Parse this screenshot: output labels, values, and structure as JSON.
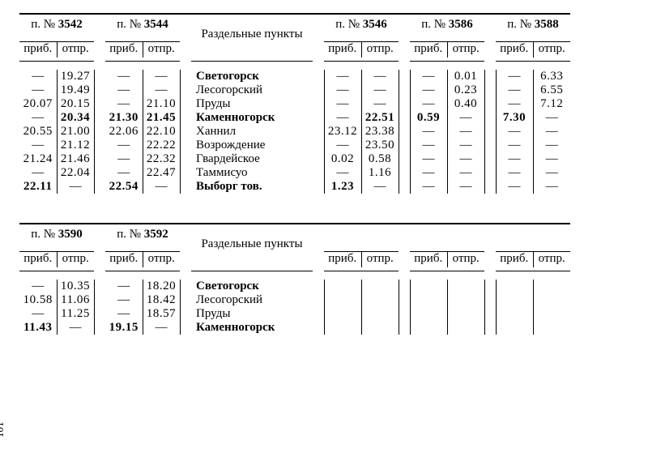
{
  "common": {
    "train_prefix": "п. №",
    "arr_label": "приб.",
    "dep_label": "отпр.",
    "stations_header": "Раздельные пункты",
    "page_number": "101",
    "em_dash": "—"
  },
  "table1": {
    "trains": [
      "3542",
      "3544",
      "3546",
      "3586",
      "3588"
    ],
    "stations": [
      {
        "name": "Светогорск",
        "bold": true
      },
      {
        "name": "Лесогорский",
        "bold": false
      },
      {
        "name": "Пруды",
        "bold": false
      },
      {
        "name": "Каменногорск",
        "bold": true
      },
      {
        "name": "Ханнил",
        "bold": false
      },
      {
        "name": "Возрождение",
        "bold": false
      },
      {
        "name": "Гвардейское",
        "bold": false
      },
      {
        "name": "Таммисуо",
        "bold": false
      },
      {
        "name": "Выборг тов.",
        "bold": true
      }
    ],
    "data": {
      "3542": [
        [
          "",
          "19.27"
        ],
        [
          "",
          "19.49"
        ],
        [
          "20.07",
          "20.15"
        ],
        [
          "",
          "20.34"
        ],
        [
          "20.55",
          "21.00"
        ],
        [
          "",
          "21.12"
        ],
        [
          "21.24",
          "21.46"
        ],
        [
          "",
          "22.04"
        ],
        [
          "22.11",
          ""
        ]
      ],
      "3544": [
        [
          "",
          ""
        ],
        [
          "",
          ""
        ],
        [
          "",
          "21.10"
        ],
        [
          "21.30",
          "21.45"
        ],
        [
          "22.06",
          "22.10"
        ],
        [
          "",
          "22.22"
        ],
        [
          "",
          "22.32"
        ],
        [
          "",
          "22.47"
        ],
        [
          "22.54",
          ""
        ]
      ],
      "3546": [
        [
          "",
          ""
        ],
        [
          "",
          ""
        ],
        [
          "",
          ""
        ],
        [
          "",
          "22.51"
        ],
        [
          "23.12",
          "23.38"
        ],
        [
          "",
          "23.50"
        ],
        [
          "0.02",
          "0.58"
        ],
        [
          "",
          "1.16"
        ],
        [
          "1.23",
          ""
        ]
      ],
      "3586": [
        [
          "",
          "0.01"
        ],
        [
          "",
          "0.23"
        ],
        [
          "",
          "0.40"
        ],
        [
          "0.59",
          ""
        ],
        [
          "",
          ""
        ],
        [
          "",
          ""
        ],
        [
          "",
          ""
        ],
        [
          "",
          ""
        ],
        [
          "",
          ""
        ]
      ],
      "3588": [
        [
          "",
          "6.33"
        ],
        [
          "",
          "6.55"
        ],
        [
          "",
          "7.12"
        ],
        [
          "7.30",
          ""
        ],
        [
          "",
          ""
        ],
        [
          "",
          ""
        ],
        [
          "",
          ""
        ],
        [
          "",
          ""
        ],
        [
          "",
          ""
        ]
      ]
    },
    "bold_rows": [
      3,
      8
    ]
  },
  "table2": {
    "trains": [
      "3590",
      "3592"
    ],
    "blank_train_cols": 3,
    "stations": [
      {
        "name": "Светогорск",
        "bold": true
      },
      {
        "name": "Лесогорский",
        "bold": false
      },
      {
        "name": "Пруды",
        "bold": false
      },
      {
        "name": "Каменногорск",
        "bold": true
      }
    ],
    "data": {
      "3590": [
        [
          "",
          "10.35"
        ],
        [
          "10.58",
          "11.06"
        ],
        [
          "",
          "11.25"
        ],
        [
          "11.43",
          ""
        ]
      ],
      "3592": [
        [
          "",
          "18.20"
        ],
        [
          "",
          "18.42"
        ],
        [
          "",
          "18.57"
        ],
        [
          "19.15",
          ""
        ]
      ]
    },
    "bold_rows": [
      3
    ]
  }
}
